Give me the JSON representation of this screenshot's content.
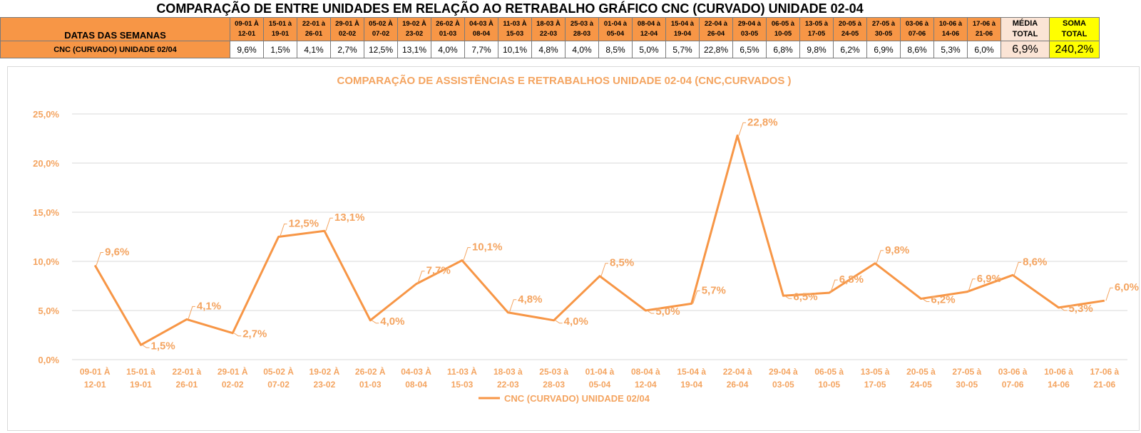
{
  "page": {
    "title": "COMPARAÇÃO DE ENTRE UNIDADES EM RELAÇÃO AO RETRABALHO GRÁFICO CNC (CURVADO) UNIDADE 02-04"
  },
  "table": {
    "header_label": "DATAS DAS SEMANAS",
    "weeks": [
      [
        "09-01 À",
        "12-01"
      ],
      [
        "15-01 à",
        "19-01"
      ],
      [
        "22-01 à",
        "26-01"
      ],
      [
        "29-01 À",
        "02-02"
      ],
      [
        "05-02 À",
        "07-02"
      ],
      [
        "19-02 À",
        "23-02"
      ],
      [
        "26-02 À",
        "01-03"
      ],
      [
        "04-03 À",
        "08-04"
      ],
      [
        "11-03 À",
        "15-03"
      ],
      [
        "18-03 À",
        "22-03"
      ],
      [
        "25-03 à",
        "28-03"
      ],
      [
        "01-04 à",
        "05-04"
      ],
      [
        "08-04 à",
        "12-04"
      ],
      [
        "15-04 à",
        "19-04"
      ],
      [
        "22-04 à",
        "26-04"
      ],
      [
        "29-04 à",
        "03-05"
      ],
      [
        "06-05 à",
        "10-05"
      ],
      [
        "13-05 à",
        "17-05"
      ],
      [
        "20-05 à",
        "24-05"
      ],
      [
        "27-05 à",
        "30-05"
      ],
      [
        "03-06 à",
        "07-06"
      ],
      [
        "10-06 à",
        "14-06"
      ],
      [
        "17-06 à",
        "21-06"
      ]
    ],
    "media_header": [
      "MÉDIA",
      "TOTAL"
    ],
    "soma_header": [
      "SOMA",
      "TOTAL"
    ],
    "row_label": "CNC (CURVADO) UNIDADE 02/04",
    "values": [
      "9,6%",
      "1,5%",
      "4,1%",
      "2,7%",
      "12,5%",
      "13,1%",
      "4,0%",
      "7,7%",
      "10,1%",
      "4,8%",
      "4,0%",
      "8,5%",
      "5,0%",
      "5,7%",
      "22,8%",
      "6,5%",
      "6,8%",
      "9,8%",
      "6,2%",
      "6,9%",
      "8,6%",
      "5,3%",
      "6,0%"
    ],
    "media_value": "6,9%",
    "soma_value": "240,2%"
  },
  "colors": {
    "orange": "#f79646",
    "label_orange": "#f4a460",
    "media_bg": "#fbe4d5",
    "soma_bg": "#ffff00",
    "gridline": "#d9d9d9"
  },
  "chart_data": {
    "type": "line",
    "title": "COMPARAÇÃO DE ASSISTÊNCIAS E RETRABALHOS UNIDADE 02-04  (CNC,CURVADOS )",
    "categories": [
      [
        "09-01 À",
        "12-01"
      ],
      [
        "15-01 à",
        "19-01"
      ],
      [
        "22-01 à",
        "26-01"
      ],
      [
        "29-01 À",
        "02-02"
      ],
      [
        "05-02 À",
        "07-02"
      ],
      [
        "19-02 À",
        "23-02"
      ],
      [
        "26-02 À",
        "01-03"
      ],
      [
        "04-03 À",
        "08-04"
      ],
      [
        "11-03 À",
        "15-03"
      ],
      [
        "18-03 à",
        "22-03"
      ],
      [
        "25-03 à",
        "28-03"
      ],
      [
        "01-04 à",
        "05-04"
      ],
      [
        "08-04 à",
        "12-04"
      ],
      [
        "15-04 à",
        "19-04"
      ],
      [
        "22-04 à",
        "26-04"
      ],
      [
        "29-04 à",
        "03-05"
      ],
      [
        "06-05 à",
        "10-05"
      ],
      [
        "13-05 à",
        "17-05"
      ],
      [
        "20-05 à",
        "24-05"
      ],
      [
        "27-05 à",
        "30-05"
      ],
      [
        "03-06 à",
        "07-06"
      ],
      [
        "10-06 à",
        "14-06"
      ],
      [
        "17-06 à",
        "21-06"
      ]
    ],
    "series": [
      {
        "name": "CNC (CURVADO) UNIDADE 02/04",
        "values": [
          9.6,
          1.5,
          4.1,
          2.7,
          12.5,
          13.1,
          4.0,
          7.7,
          10.1,
          4.8,
          4.0,
          8.5,
          5.0,
          5.7,
          22.8,
          6.5,
          6.8,
          9.8,
          6.2,
          6.9,
          8.6,
          5.3,
          6.0
        ],
        "labels": [
          "9,6%",
          "1,5%",
          "4,1%",
          "2,7%",
          "12,5%",
          "13,1%",
          "4,0%",
          "7,7%",
          "10,1%",
          "4,8%",
          "4,0%",
          "8,5%",
          "5,0%",
          "5,7%",
          "22,8%",
          "6,5%",
          "6,8%",
          "9,8%",
          "6,2%",
          "6,9%",
          "8,6%",
          "5,3%",
          "6,0%"
        ]
      }
    ],
    "ylim": [
      0,
      25
    ],
    "yticks": [
      "0,0%",
      "5,0%",
      "10,0%",
      "15,0%",
      "20,0%",
      "25,0%"
    ],
    "ytick_values": [
      0,
      5,
      10,
      15,
      20,
      25
    ],
    "grid": true,
    "legend_position": "bottom"
  }
}
